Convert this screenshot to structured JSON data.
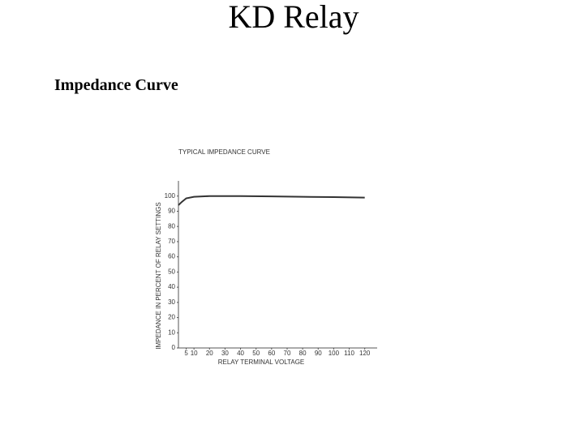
{
  "slide": {
    "title": "KD Relay",
    "subtitle": "Impedance Curve"
  },
  "chart_data": {
    "type": "line",
    "title": "TYPICAL IMPEDANCE CURVE",
    "x_label": "RELAY TERMINAL VOLTAGE",
    "y_label": "IMPEDANCE IN PERCENT OF RELAY SETTINGS",
    "x": [
      0,
      2,
      5,
      10,
      20,
      40,
      60,
      80,
      100,
      120
    ],
    "series": [
      {
        "color": "#333333",
        "values": [
          94,
          96,
          98.5,
          99.5,
          100,
          100,
          99.8,
          99.5,
          99.3,
          99
        ]
      }
    ],
    "xlim": [
      0,
      128
    ],
    "ylim": [
      0,
      110
    ],
    "xticks": [
      5,
      10,
      20,
      30,
      40,
      50,
      60,
      70,
      80,
      90,
      100,
      110,
      120
    ],
    "yticks": [
      0,
      10,
      20,
      30,
      40,
      50,
      60,
      70,
      80,
      90,
      100
    ],
    "grid": false
  }
}
